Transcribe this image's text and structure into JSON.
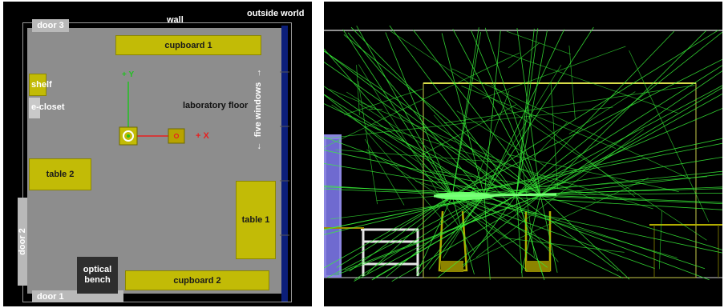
{
  "floor_plan": {
    "wall_label": "wall",
    "outside_label": "outside world",
    "floor_label": "laboratory floor",
    "windows_label": "five windows",
    "doors": {
      "door1": "door 1",
      "door2": "door 2",
      "door3": "door 3"
    },
    "furniture": {
      "cupboard1": "cupboard 1",
      "cupboard2": "cupboard 2",
      "shelf": "shelf",
      "ecloset": "e-closet",
      "table1": "table 1",
      "table2": "table 2",
      "optical_bench": "optical bench"
    },
    "axes": {
      "x_label": "+ X",
      "y_label": "+ Y"
    },
    "device_labels": {
      "left": "",
      "right": ""
    }
  },
  "simulation": {
    "ray_color": "#38f238",
    "room_line_color": "#c8cc4a"
  },
  "colors": {
    "floor": "#8d8d8d",
    "furniture": "#c2bb06",
    "window": "#0b1e7a",
    "axis_x": "#e82020",
    "axis_y": "#22c022",
    "background": "#000000"
  }
}
